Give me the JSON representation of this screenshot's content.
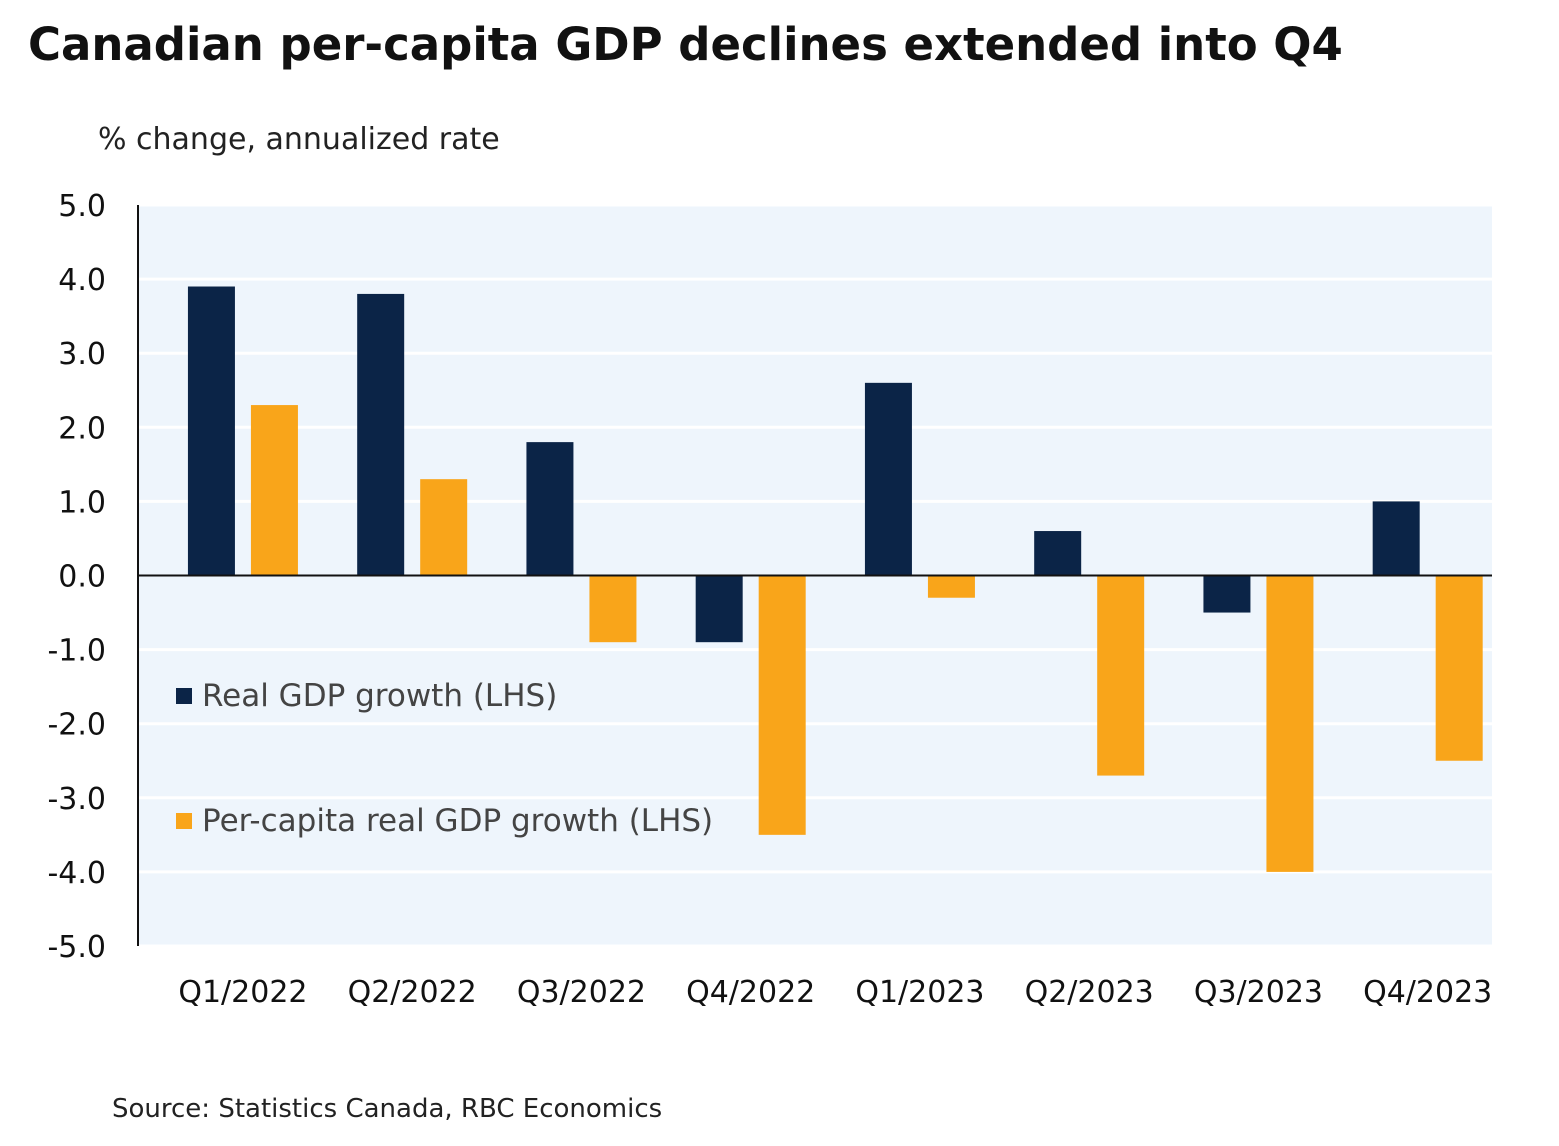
{
  "title": "Canadian per-capita GDP declines extended into Q4",
  "source": "Source: Statistics Canada, RBC Economics",
  "colors": {
    "real_gdp": "#0b2447",
    "per_capita": "#f9a51a",
    "plot_background": "#eef5fc",
    "gridline": "#ffffff",
    "axis": "#111111"
  },
  "chart_data": {
    "type": "bar",
    "title": "Canadian per-capita GDP declines extended into Q4",
    "ylabel": "% change, annualized rate",
    "xlabel": "",
    "ylim": [
      -5.0,
      5.0
    ],
    "yticks": [
      "5.0",
      "4.0",
      "3.0",
      "2.0",
      "1.0",
      "0.0",
      "-1.0",
      "-2.0",
      "-3.0",
      "-4.0",
      "-5.0"
    ],
    "ytick_values": [
      5,
      4,
      3,
      2,
      1,
      0,
      -1,
      -2,
      -3,
      -4,
      -5
    ],
    "grid": true,
    "legend_position": "left-middle",
    "categories": [
      "Q1/2022",
      "Q2/2022",
      "Q3/2022",
      "Q4/2022",
      "Q1/2023",
      "Q2/2023",
      "Q3/2023",
      "Q4/2023"
    ],
    "series": [
      {
        "name": "Real GDP growth (LHS)",
        "color": "#0b2447",
        "values": [
          3.9,
          3.8,
          1.8,
          -0.9,
          2.6,
          0.6,
          -0.5,
          1.0
        ]
      },
      {
        "name": "Per-capita real GDP growth (LHS)",
        "color": "#f9a51a",
        "values": [
          2.3,
          1.3,
          -0.9,
          -3.5,
          -0.3,
          -2.7,
          -4.0,
          -2.5
        ]
      }
    ]
  }
}
